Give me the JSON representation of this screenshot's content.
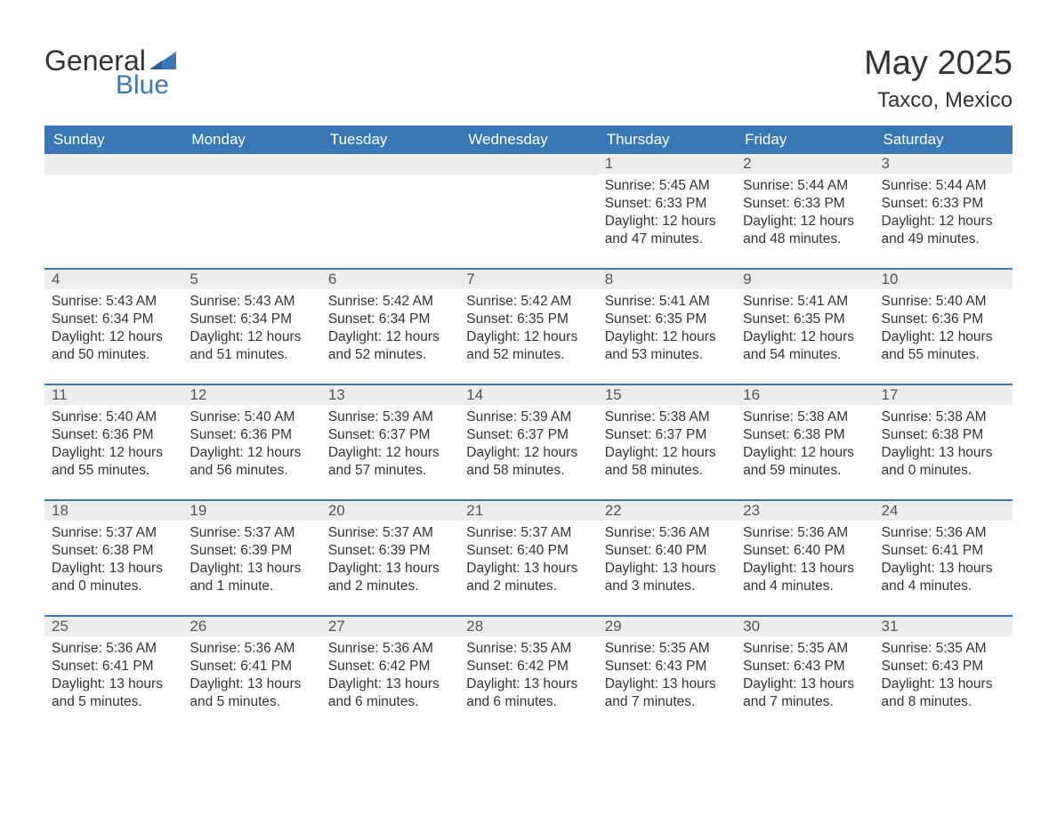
{
  "logo": {
    "text_general": "General",
    "text_blue": "Blue"
  },
  "header": {
    "month_year": "May 2025",
    "location": "Taxco, Mexico"
  },
  "colors": {
    "header_bg": "#3a78b5",
    "header_text": "#ffffff",
    "daynum_bg": "#ededed",
    "daynum_text": "#555555",
    "body_text": "#333333",
    "row_border": "#3a78b5",
    "logo_blue": "#3a78b5",
    "logo_dark": "#333333",
    "page_bg": "#ffffff"
  },
  "day_headers": [
    "Sunday",
    "Monday",
    "Tuesday",
    "Wednesday",
    "Thursday",
    "Friday",
    "Saturday"
  ],
  "weeks": [
    [
      {
        "day": "",
        "sunrise": "",
        "sunset": "",
        "daylight": "",
        "empty": true
      },
      {
        "day": "",
        "sunrise": "",
        "sunset": "",
        "daylight": "",
        "empty": true
      },
      {
        "day": "",
        "sunrise": "",
        "sunset": "",
        "daylight": "",
        "empty": true
      },
      {
        "day": "",
        "sunrise": "",
        "sunset": "",
        "daylight": "",
        "empty": true
      },
      {
        "day": "1",
        "sunrise": "Sunrise: 5:45 AM",
        "sunset": "Sunset: 6:33 PM",
        "daylight": "Daylight: 12 hours and 47 minutes."
      },
      {
        "day": "2",
        "sunrise": "Sunrise: 5:44 AM",
        "sunset": "Sunset: 6:33 PM",
        "daylight": "Daylight: 12 hours and 48 minutes."
      },
      {
        "day": "3",
        "sunrise": "Sunrise: 5:44 AM",
        "sunset": "Sunset: 6:33 PM",
        "daylight": "Daylight: 12 hours and 49 minutes."
      }
    ],
    [
      {
        "day": "4",
        "sunrise": "Sunrise: 5:43 AM",
        "sunset": "Sunset: 6:34 PM",
        "daylight": "Daylight: 12 hours and 50 minutes."
      },
      {
        "day": "5",
        "sunrise": "Sunrise: 5:43 AM",
        "sunset": "Sunset: 6:34 PM",
        "daylight": "Daylight: 12 hours and 51 minutes."
      },
      {
        "day": "6",
        "sunrise": "Sunrise: 5:42 AM",
        "sunset": "Sunset: 6:34 PM",
        "daylight": "Daylight: 12 hours and 52 minutes."
      },
      {
        "day": "7",
        "sunrise": "Sunrise: 5:42 AM",
        "sunset": "Sunset: 6:35 PM",
        "daylight": "Daylight: 12 hours and 52 minutes."
      },
      {
        "day": "8",
        "sunrise": "Sunrise: 5:41 AM",
        "sunset": "Sunset: 6:35 PM",
        "daylight": "Daylight: 12 hours and 53 minutes."
      },
      {
        "day": "9",
        "sunrise": "Sunrise: 5:41 AM",
        "sunset": "Sunset: 6:35 PM",
        "daylight": "Daylight: 12 hours and 54 minutes."
      },
      {
        "day": "10",
        "sunrise": "Sunrise: 5:40 AM",
        "sunset": "Sunset: 6:36 PM",
        "daylight": "Daylight: 12 hours and 55 minutes."
      }
    ],
    [
      {
        "day": "11",
        "sunrise": "Sunrise: 5:40 AM",
        "sunset": "Sunset: 6:36 PM",
        "daylight": "Daylight: 12 hours and 55 minutes."
      },
      {
        "day": "12",
        "sunrise": "Sunrise: 5:40 AM",
        "sunset": "Sunset: 6:36 PM",
        "daylight": "Daylight: 12 hours and 56 minutes."
      },
      {
        "day": "13",
        "sunrise": "Sunrise: 5:39 AM",
        "sunset": "Sunset: 6:37 PM",
        "daylight": "Daylight: 12 hours and 57 minutes."
      },
      {
        "day": "14",
        "sunrise": "Sunrise: 5:39 AM",
        "sunset": "Sunset: 6:37 PM",
        "daylight": "Daylight: 12 hours and 58 minutes."
      },
      {
        "day": "15",
        "sunrise": "Sunrise: 5:38 AM",
        "sunset": "Sunset: 6:37 PM",
        "daylight": "Daylight: 12 hours and 58 minutes."
      },
      {
        "day": "16",
        "sunrise": "Sunrise: 5:38 AM",
        "sunset": "Sunset: 6:38 PM",
        "daylight": "Daylight: 12 hours and 59 minutes."
      },
      {
        "day": "17",
        "sunrise": "Sunrise: 5:38 AM",
        "sunset": "Sunset: 6:38 PM",
        "daylight": "Daylight: 13 hours and 0 minutes."
      }
    ],
    [
      {
        "day": "18",
        "sunrise": "Sunrise: 5:37 AM",
        "sunset": "Sunset: 6:38 PM",
        "daylight": "Daylight: 13 hours and 0 minutes."
      },
      {
        "day": "19",
        "sunrise": "Sunrise: 5:37 AM",
        "sunset": "Sunset: 6:39 PM",
        "daylight": "Daylight: 13 hours and 1 minute."
      },
      {
        "day": "20",
        "sunrise": "Sunrise: 5:37 AM",
        "sunset": "Sunset: 6:39 PM",
        "daylight": "Daylight: 13 hours and 2 minutes."
      },
      {
        "day": "21",
        "sunrise": "Sunrise: 5:37 AM",
        "sunset": "Sunset: 6:40 PM",
        "daylight": "Daylight: 13 hours and 2 minutes."
      },
      {
        "day": "22",
        "sunrise": "Sunrise: 5:36 AM",
        "sunset": "Sunset: 6:40 PM",
        "daylight": "Daylight: 13 hours and 3 minutes."
      },
      {
        "day": "23",
        "sunrise": "Sunrise: 5:36 AM",
        "sunset": "Sunset: 6:40 PM",
        "daylight": "Daylight: 13 hours and 4 minutes."
      },
      {
        "day": "24",
        "sunrise": "Sunrise: 5:36 AM",
        "sunset": "Sunset: 6:41 PM",
        "daylight": "Daylight: 13 hours and 4 minutes."
      }
    ],
    [
      {
        "day": "25",
        "sunrise": "Sunrise: 5:36 AM",
        "sunset": "Sunset: 6:41 PM",
        "daylight": "Daylight: 13 hours and 5 minutes."
      },
      {
        "day": "26",
        "sunrise": "Sunrise: 5:36 AM",
        "sunset": "Sunset: 6:41 PM",
        "daylight": "Daylight: 13 hours and 5 minutes."
      },
      {
        "day": "27",
        "sunrise": "Sunrise: 5:36 AM",
        "sunset": "Sunset: 6:42 PM",
        "daylight": "Daylight: 13 hours and 6 minutes."
      },
      {
        "day": "28",
        "sunrise": "Sunrise: 5:35 AM",
        "sunset": "Sunset: 6:42 PM",
        "daylight": "Daylight: 13 hours and 6 minutes."
      },
      {
        "day": "29",
        "sunrise": "Sunrise: 5:35 AM",
        "sunset": "Sunset: 6:43 PM",
        "daylight": "Daylight: 13 hours and 7 minutes."
      },
      {
        "day": "30",
        "sunrise": "Sunrise: 5:35 AM",
        "sunset": "Sunset: 6:43 PM",
        "daylight": "Daylight: 13 hours and 7 minutes."
      },
      {
        "day": "31",
        "sunrise": "Sunrise: 5:35 AM",
        "sunset": "Sunset: 6:43 PM",
        "daylight": "Daylight: 13 hours and 8 minutes."
      }
    ]
  ]
}
